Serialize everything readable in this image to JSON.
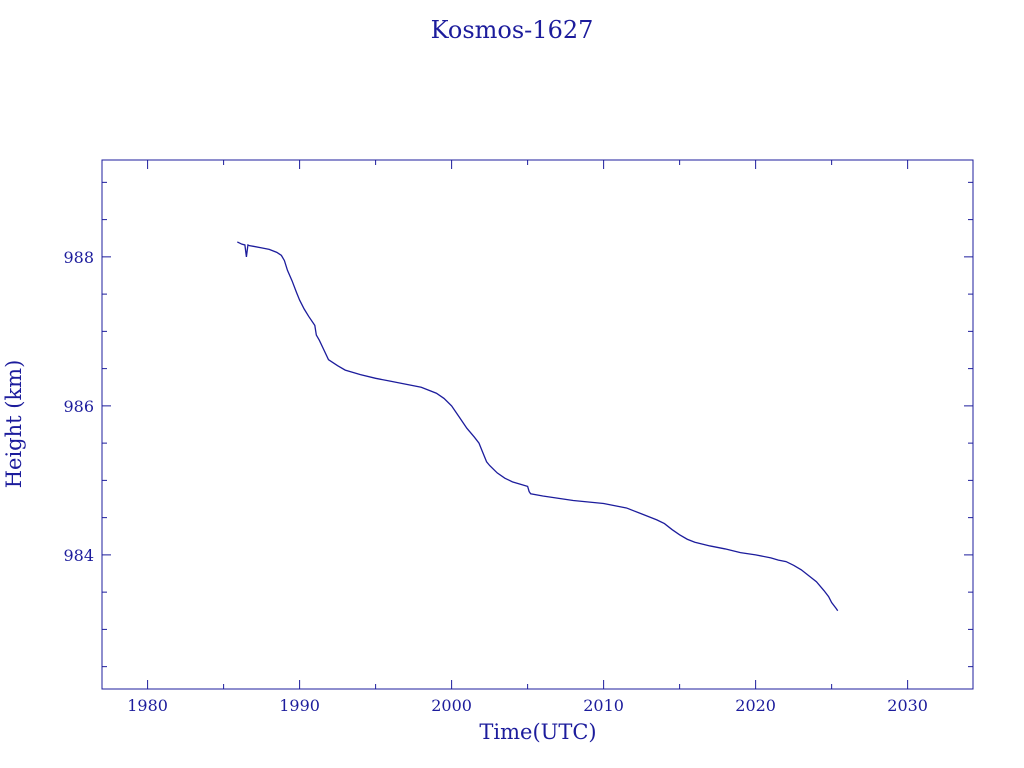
{
  "chart_data": {
    "type": "line",
    "title": "Kosmos-1627",
    "xlabel": "Time(UTC)",
    "ylabel": "Height (km)",
    "xlim": [
      1977,
      2034.3
    ],
    "ylim": [
      982.2,
      989.3
    ],
    "x_ticks": [
      1980,
      1990,
      2000,
      2010,
      2020,
      2030
    ],
    "x_tick_labels": [
      "1980",
      "1990",
      "2000",
      "2010",
      "2020",
      "2030"
    ],
    "x_minor_step": 5,
    "y_ticks": [
      984,
      986,
      988
    ],
    "y_tick_labels": [
      "984",
      "986",
      "988"
    ],
    "y_minor_step": 0.5,
    "grid": false,
    "color": "#1c1c9c",
    "series": [
      {
        "x": [
          1985.9,
          1986.2,
          1986.4,
          1986.5,
          1986.6,
          1986.7,
          1987.0,
          1987.5,
          1988.0,
          1988.5,
          1988.8,
          1989.0,
          1989.2,
          1989.5,
          1989.8,
          1990.0,
          1990.3,
          1990.6,
          1991.0,
          1991.1,
          1991.3,
          1991.6,
          1991.9,
          1992.2,
          1992.5,
          1993.0,
          1993.5,
          1994.0,
          1995.0,
          1996.0,
          1997.0,
          1998.0,
          1998.5,
          1999.0,
          1999.5,
          2000.0,
          2000.5,
          2001.0,
          2001.5,
          2001.8,
          2002.0,
          2002.3,
          2002.5,
          2003.0,
          2003.5,
          2004.0,
          2004.5,
          2005.0,
          2005.1,
          2005.2,
          2006.0,
          2007.0,
          2008.0,
          2009.0,
          2010.0,
          2011.0,
          2011.5,
          2012.0,
          2012.5,
          2013.0,
          2013.5,
          2014.0,
          2014.5,
          2015.0,
          2015.5,
          2016.0,
          2017.0,
          2018.0,
          2019.0,
          2020.0,
          2021.0,
          2021.5,
          2022.0,
          2022.5,
          2023.0,
          2023.5,
          2024.0,
          2024.5,
          2024.8,
          2025.0,
          2025.3,
          2025.4
        ],
        "y": [
          988.2,
          988.17,
          988.16,
          988.0,
          988.16,
          988.15,
          988.14,
          988.12,
          988.1,
          988.06,
          988.02,
          987.95,
          987.82,
          987.68,
          987.52,
          987.42,
          987.3,
          987.2,
          987.08,
          986.95,
          986.88,
          986.75,
          986.62,
          986.58,
          986.54,
          986.48,
          986.45,
          986.42,
          986.37,
          986.33,
          986.29,
          986.25,
          986.21,
          986.17,
          986.1,
          986.0,
          985.85,
          985.7,
          985.58,
          985.5,
          985.4,
          985.25,
          985.2,
          985.1,
          985.03,
          984.98,
          984.95,
          984.92,
          984.85,
          984.82,
          984.79,
          984.76,
          984.73,
          984.71,
          984.69,
          984.65,
          984.63,
          984.59,
          984.55,
          984.51,
          984.47,
          984.42,
          984.34,
          984.27,
          984.21,
          984.17,
          984.12,
          984.08,
          984.03,
          984.0,
          983.96,
          983.93,
          983.91,
          983.86,
          983.8,
          983.72,
          983.64,
          983.52,
          983.44,
          983.36,
          983.28,
          983.25
        ]
      }
    ]
  }
}
